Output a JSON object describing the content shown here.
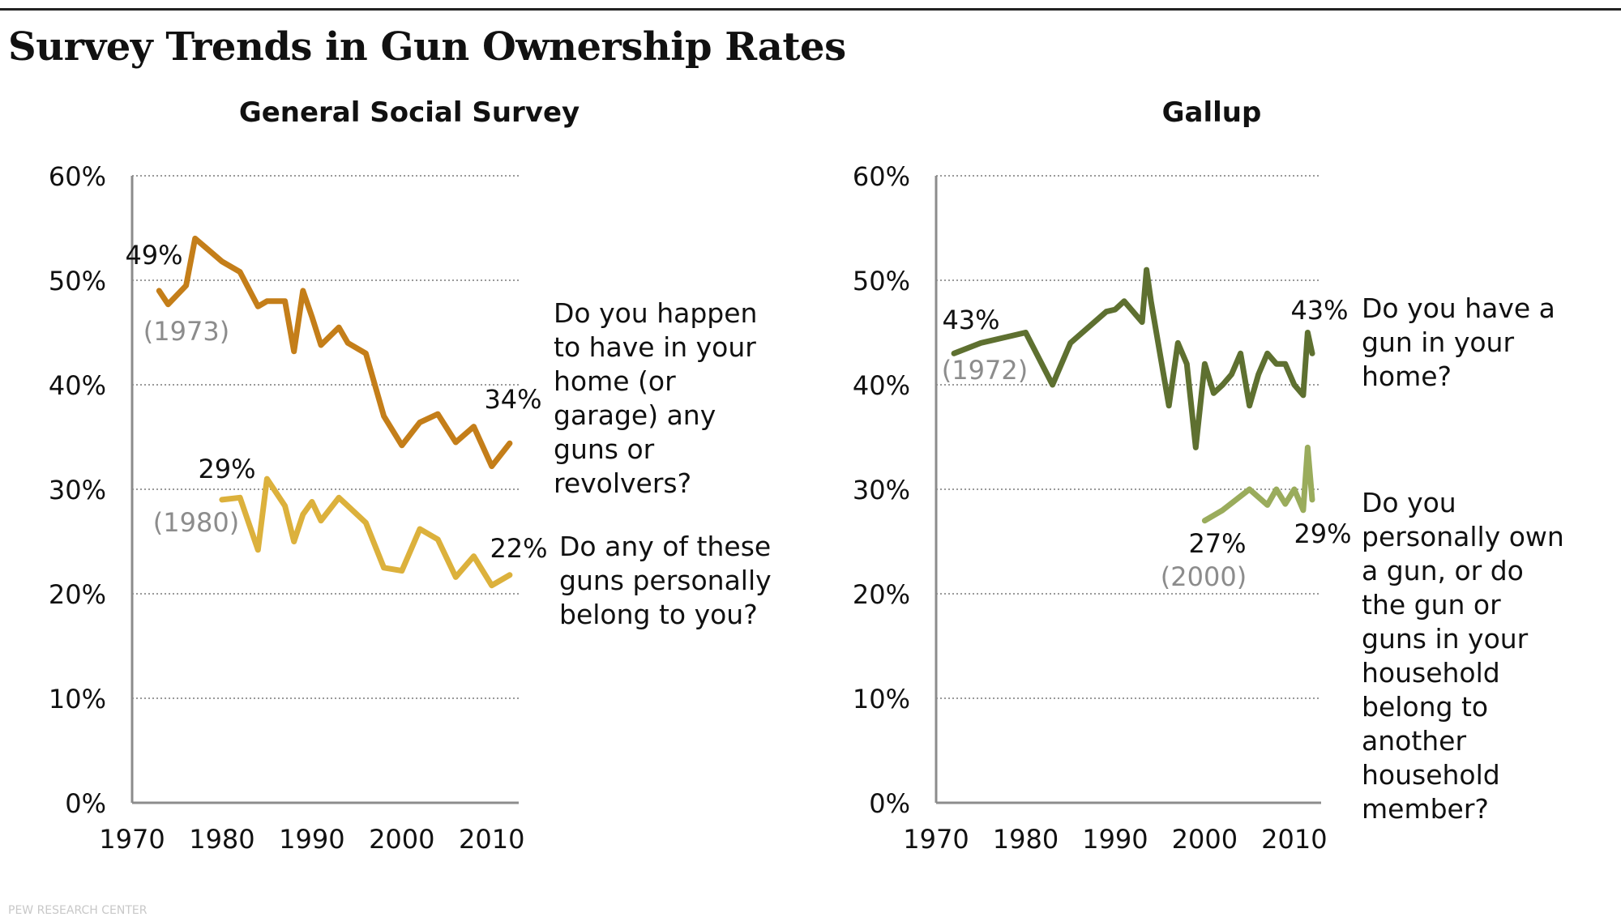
{
  "title": "Survey Trends in Gun Ownership Rates",
  "footer": "PEW RESEARCH CENTER",
  "colors": {
    "gss_home": "#c47e19",
    "gss_personal": "#dcb13c",
    "gallup_home": "#5e7030",
    "gallup_personal": "#9aac5c",
    "axis": "#8c8c8c",
    "grid": "#9a9a9a",
    "paren_label": "#8c8c8c"
  },
  "chart_data": [
    {
      "type": "line",
      "title": "General Social Survey",
      "xlim": [
        1970,
        2013
      ],
      "ylim": [
        0,
        60
      ],
      "x_ticks": [
        1970,
        1980,
        1990,
        2000,
        2010
      ],
      "x_tick_labels": [
        "1970",
        "1980",
        "1990",
        "2000",
        "2010"
      ],
      "y_ticks": [
        0,
        10,
        20,
        30,
        40,
        50,
        60
      ],
      "y_tick_labels": [
        "0%",
        "10%",
        "20%",
        "30%",
        "40%",
        "50%",
        "60%"
      ],
      "grid": "horizontal-dotted",
      "series": [
        {
          "name": "Do you happen to have in your home (or garage) any guns or revolvers?",
          "color_key": "gss_home",
          "x": [
            1973,
            1974,
            1976,
            1977,
            1980,
            1982,
            1984,
            1985,
            1987,
            1988,
            1989,
            1990,
            1991,
            1993,
            1994,
            1996,
            1998,
            2000,
            2002,
            2004,
            2006,
            2008,
            2010,
            2012
          ],
          "y": [
            49,
            47.7,
            49.5,
            54,
            51.8,
            50.8,
            47.5,
            48,
            48,
            43.2,
            49,
            46.5,
            43.8,
            45.5,
            44,
            43,
            37,
            34.2,
            36.4,
            37.2,
            34.5,
            36,
            32.2,
            34.4
          ],
          "start_label": "49%",
          "start_year_label": "(1973)",
          "end_label": "34%"
        },
        {
          "name": "Do any of these guns personally belong to you?",
          "color_key": "gss_personal",
          "x": [
            1980,
            1982,
            1984,
            1985,
            1987,
            1988,
            1989,
            1990,
            1991,
            1993,
            1994,
            1996,
            1998,
            2000,
            2002,
            2004,
            2006,
            2008,
            2010,
            2012
          ],
          "y": [
            29,
            29.2,
            24.2,
            31,
            28.4,
            25,
            27.6,
            28.8,
            27,
            29.2,
            28.4,
            26.8,
            22.5,
            22.2,
            26.2,
            25.2,
            21.6,
            23.6,
            20.8,
            21.8
          ],
          "start_label": "29%",
          "start_year_label": "(1980)",
          "end_label": "22%"
        }
      ],
      "annotations": [
        "Do you happen to have in your home (or garage) any guns or revolvers?",
        "Do any of these guns personally belong to you?"
      ]
    },
    {
      "type": "line",
      "title": "Gallup",
      "xlim": [
        1970,
        2013
      ],
      "ylim": [
        0,
        60
      ],
      "x_ticks": [
        1970,
        1980,
        1990,
        2000,
        2010
      ],
      "x_tick_labels": [
        "1970",
        "1980",
        "1990",
        "2000",
        "2010"
      ],
      "y_ticks": [
        0,
        10,
        20,
        30,
        40,
        50,
        60
      ],
      "y_tick_labels": [
        "0%",
        "10%",
        "20%",
        "30%",
        "40%",
        "50%",
        "60%"
      ],
      "grid": "horizontal-dotted",
      "series": [
        {
          "name": "Do you have a gun in your home?",
          "color_key": "gallup_home",
          "x": [
            1972,
            1975,
            1980,
            1983,
            1985,
            1989,
            1990,
            1991,
            1993,
            1993.5,
            1994,
            1996,
            1997,
            1998,
            1999,
            2000,
            2001,
            2002,
            2003,
            2004,
            2005,
            2006,
            2007,
            2008,
            2009,
            2010,
            2011,
            2011.5,
            2012
          ],
          "y": [
            43,
            44,
            45,
            40,
            44,
            47,
            47.2,
            48,
            46,
            51,
            48,
            38,
            44,
            42,
            34,
            42,
            39.2,
            40,
            41,
            43,
            38,
            41,
            43,
            42,
            42,
            40,
            39,
            45,
            43
          ],
          "start_label": "43%",
          "start_year_label": "(1972)",
          "end_label": "43%"
        },
        {
          "name": "Do you personally own a gun, or do the gun or guns in your household belong to another household member?",
          "color_key": "gallup_personal",
          "x": [
            2000,
            2002,
            2005,
            2007,
            2008,
            2009,
            2010,
            2011,
            2011.5,
            2012
          ],
          "y": [
            27,
            28,
            30,
            28.5,
            30,
            28.6,
            30,
            28,
            34,
            29
          ],
          "start_label": "27%",
          "start_year_label": "(2000)",
          "end_label": "29%"
        }
      ],
      "annotations": [
        "Do you have a gun in your home?",
        "Do you personally own a gun, or do the gun or guns in your household belong to another household member?"
      ]
    }
  ],
  "annotation_lines": {
    "gss_home": [
      "Do you happen",
      "to have in your",
      "home (or",
      "garage) any",
      "guns or",
      "revolvers?"
    ],
    "gss_personal": [
      "Do any of these",
      "guns personally",
      "belong to you?"
    ],
    "gallup_home": [
      "Do you have a",
      "gun in your",
      "home?"
    ],
    "gallup_personal": [
      "Do you",
      "personally own",
      "a gun, or do",
      "the gun or",
      "guns in your",
      "household",
      "belong to",
      "another",
      "household",
      "member?"
    ]
  }
}
